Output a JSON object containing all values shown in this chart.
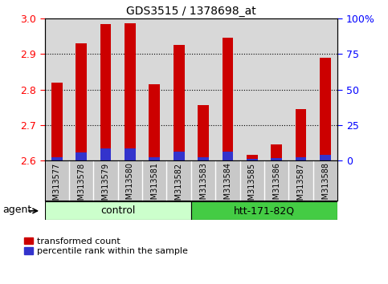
{
  "title": "GDS3515 / 1378698_at",
  "samples": [
    "GSM313577",
    "GSM313578",
    "GSM313579",
    "GSM313580",
    "GSM313581",
    "GSM313582",
    "GSM313583",
    "GSM313584",
    "GSM313585",
    "GSM313586",
    "GSM313587",
    "GSM313588"
  ],
  "red_values": [
    2.82,
    2.93,
    2.985,
    2.987,
    2.815,
    2.925,
    2.755,
    2.945,
    2.615,
    2.645,
    2.745,
    2.89
  ],
  "blue_values": [
    2.61,
    2.622,
    2.635,
    2.635,
    2.61,
    2.625,
    2.61,
    2.625,
    2.605,
    2.607,
    2.61,
    2.615
  ],
  "ymin": 2.6,
  "ymax": 3.0,
  "yticks_left": [
    2.6,
    2.7,
    2.8,
    2.9,
    3.0
  ],
  "grid_lines": [
    2.7,
    2.8,
    2.9
  ],
  "right_ytick_pcts": [
    0,
    25,
    50,
    75,
    100
  ],
  "right_ylabels": [
    "0",
    "25",
    "50",
    "75",
    "100%"
  ],
  "n_control": 6,
  "n_treatment": 6,
  "control_label": "control",
  "treatment_label": "htt-171-82Q",
  "agent_label": "agent",
  "legend_red": "transformed count",
  "legend_blue": "percentile rank within the sample",
  "bar_color_red": "#cc0000",
  "bar_color_blue": "#3333cc",
  "control_box_color": "#ccffcc",
  "treatment_box_color": "#44cc44",
  "bar_width": 0.45,
  "plot_bg_color": "#d8d8d8",
  "xtick_bg_color": "#c8c8c8"
}
